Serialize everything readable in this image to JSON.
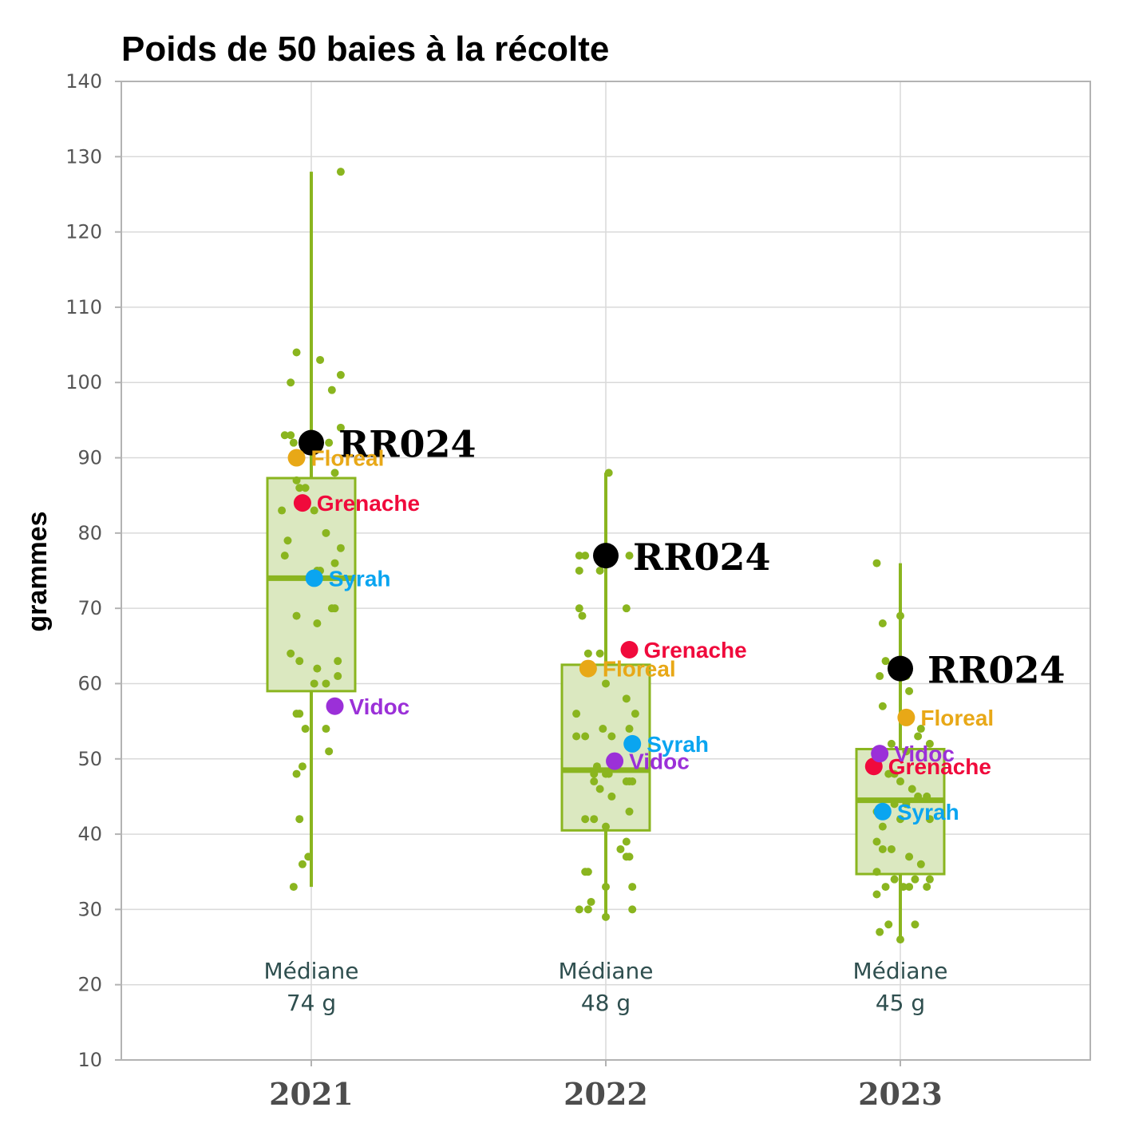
{
  "chart_data": {
    "type": "boxplot",
    "title": "Poids de 50 baies à la récolte",
    "xlabel": "",
    "ylabel": "grammes",
    "ylim": [
      10,
      140
    ],
    "yticks": [
      10,
      20,
      30,
      40,
      50,
      60,
      70,
      80,
      90,
      100,
      110,
      120,
      130,
      140
    ],
    "grid": true,
    "categories": [
      "2021",
      "2022",
      "2023"
    ],
    "colors": {
      "box": "#8ab51f",
      "box_fill": "#dbe8c0",
      "grid": "#d9d9d9",
      "frame": "#b3b3b3",
      "RR024": "#000000",
      "Floreal": "#e8a817",
      "Grenache": "#f00a3c",
      "Syrah": "#0aa5f0",
      "Vidoc": "#9b30d8"
    },
    "boxes": [
      {
        "year": "2021",
        "min": 33,
        "q1": 59,
        "median": 74,
        "q3": 87.3,
        "max": 128,
        "median_label": [
          "Médiane",
          "74 g"
        ]
      },
      {
        "year": "2022",
        "min": 29,
        "q1": 40.5,
        "median": 48.5,
        "q3": 62.5,
        "max": 88,
        "median_label": [
          "Médiane",
          "48 g"
        ]
      },
      {
        "year": "2023",
        "min": 26,
        "q1": 34.7,
        "median": 44.5,
        "q3": 51.3,
        "max": 76,
        "median_label": [
          "Médiane",
          "45 g"
        ]
      }
    ],
    "jitter_points": [
      [
        [
          0.1,
          128
        ],
        [
          -0.05,
          104
        ],
        [
          0.03,
          103
        ],
        [
          0.1,
          101
        ],
        [
          -0.07,
          100
        ],
        [
          0.07,
          99
        ],
        [
          0.1,
          94
        ],
        [
          -0.07,
          93
        ],
        [
          -0.09,
          93
        ],
        [
          0.06,
          92
        ],
        [
          -0.06,
          92
        ],
        [
          0.08,
          88
        ],
        [
          -0.05,
          87
        ],
        [
          -0.04,
          86
        ],
        [
          -0.02,
          86
        ],
        [
          -0.1,
          83
        ],
        [
          0.01,
          83
        ],
        [
          0.05,
          80
        ],
        [
          -0.08,
          79
        ],
        [
          0.1,
          78
        ],
        [
          -0.09,
          77
        ],
        [
          0.08,
          76
        ],
        [
          0.02,
          75
        ],
        [
          0.03,
          75
        ],
        [
          0.07,
          70
        ],
        [
          0.08,
          70
        ],
        [
          -0.05,
          69
        ],
        [
          0.02,
          68
        ],
        [
          -0.07,
          64
        ],
        [
          -0.04,
          63
        ],
        [
          0.09,
          63
        ],
        [
          0.02,
          62
        ],
        [
          0.09,
          61
        ],
        [
          0.01,
          60
        ],
        [
          0.05,
          60
        ],
        [
          -0.04,
          56
        ],
        [
          -0.05,
          56
        ],
        [
          -0.02,
          54
        ],
        [
          0.05,
          54
        ],
        [
          0.06,
          51
        ],
        [
          -0.03,
          49
        ],
        [
          -0.05,
          48
        ],
        [
          -0.04,
          42
        ],
        [
          -0.01,
          37
        ],
        [
          -0.03,
          36
        ],
        [
          -0.06,
          33
        ]
      ],
      [
        [
          0.01,
          88
        ],
        [
          -0.07,
          77
        ],
        [
          -0.09,
          77
        ],
        [
          0.08,
          77
        ],
        [
          -0.02,
          75
        ],
        [
          -0.09,
          75
        ],
        [
          0.07,
          70
        ],
        [
          -0.09,
          70
        ],
        [
          -0.08,
          69
        ],
        [
          -0.06,
          64
        ],
        [
          -0.02,
          64
        ],
        [
          0.0,
          60
        ],
        [
          0.07,
          58
        ],
        [
          0.1,
          56
        ],
        [
          -0.1,
          56
        ],
        [
          0.08,
          54
        ],
        [
          -0.01,
          54
        ],
        [
          -0.07,
          53
        ],
        [
          -0.1,
          53
        ],
        [
          0.02,
          53
        ],
        [
          0.04,
          50
        ],
        [
          -0.03,
          49
        ],
        [
          -0.04,
          48
        ],
        [
          0.0,
          48
        ],
        [
          0.01,
          48
        ],
        [
          -0.04,
          47
        ],
        [
          0.07,
          47
        ],
        [
          0.08,
          47
        ],
        [
          0.09,
          47
        ],
        [
          -0.02,
          46
        ],
        [
          0.02,
          45
        ],
        [
          -0.04,
          42
        ],
        [
          -0.07,
          42
        ],
        [
          0.0,
          41
        ],
        [
          0.08,
          43
        ],
        [
          0.07,
          39
        ],
        [
          0.05,
          38
        ],
        [
          0.08,
          37
        ],
        [
          0.07,
          37
        ],
        [
          -0.06,
          35
        ],
        [
          -0.07,
          35
        ],
        [
          0.0,
          33
        ],
        [
          0.09,
          33
        ],
        [
          -0.05,
          31
        ],
        [
          -0.06,
          30
        ],
        [
          -0.09,
          30
        ],
        [
          0.09,
          30
        ],
        [
          0.0,
          29
        ]
      ],
      [
        [
          -0.08,
          76
        ],
        [
          -0.06,
          68
        ],
        [
          0.0,
          69
        ],
        [
          -0.05,
          63
        ],
        [
          -0.07,
          61
        ],
        [
          0.02,
          61
        ],
        [
          0.03,
          59
        ],
        [
          -0.06,
          57
        ],
        [
          0.07,
          54
        ],
        [
          0.06,
          53
        ],
        [
          -0.03,
          52
        ],
        [
          0.1,
          52
        ],
        [
          0.02,
          51
        ],
        [
          -0.04,
          48
        ],
        [
          -0.02,
          48
        ],
        [
          0.0,
          47
        ],
        [
          0.04,
          46
        ],
        [
          0.06,
          45
        ],
        [
          0.09,
          45
        ],
        [
          -0.02,
          44
        ],
        [
          0.02,
          44
        ],
        [
          -0.08,
          43
        ],
        [
          0.0,
          42
        ],
        [
          0.1,
          42
        ],
        [
          -0.06,
          41
        ],
        [
          -0.08,
          39
        ],
        [
          -0.06,
          38
        ],
        [
          -0.03,
          38
        ],
        [
          0.03,
          37
        ],
        [
          0.07,
          36
        ],
        [
          -0.08,
          35
        ],
        [
          0.1,
          34
        ],
        [
          -0.02,
          34
        ],
        [
          0.05,
          34
        ],
        [
          -0.05,
          33
        ],
        [
          0.03,
          33
        ],
        [
          0.01,
          33
        ],
        [
          0.09,
          33
        ],
        [
          -0.08,
          32
        ],
        [
          -0.04,
          28
        ],
        [
          0.05,
          28
        ],
        [
          -0.07,
          27
        ],
        [
          0.0,
          26
        ]
      ]
    ],
    "highlighted": [
      {
        "name": "RR024",
        "values": [
          {
            "year": "2021",
            "dx": 0.0,
            "y": 92
          },
          {
            "year": "2022",
            "dx": 0.0,
            "y": 77
          },
          {
            "year": "2023",
            "dx": 0.0,
            "y": 62
          }
        ]
      },
      {
        "name": "Floreal",
        "values": [
          {
            "year": "2021",
            "dx": -0.05,
            "y": 90
          },
          {
            "year": "2022",
            "dx": -0.06,
            "y": 62
          },
          {
            "year": "2023",
            "dx": 0.02,
            "y": 55.5
          }
        ]
      },
      {
        "name": "Grenache",
        "values": [
          {
            "year": "2021",
            "dx": -0.03,
            "y": 84
          },
          {
            "year": "2022",
            "dx": 0.08,
            "y": 64.5
          },
          {
            "year": "2023",
            "dx": -0.09,
            "y": 49
          }
        ]
      },
      {
        "name": "Syrah",
        "values": [
          {
            "year": "2021",
            "dx": 0.01,
            "y": 74
          },
          {
            "year": "2022",
            "dx": 0.09,
            "y": 52
          },
          {
            "year": "2023",
            "dx": -0.06,
            "y": 43
          }
        ]
      },
      {
        "name": "Vidoc",
        "values": [
          {
            "year": "2021",
            "dx": 0.08,
            "y": 57
          },
          {
            "year": "2022",
            "dx": 0.03,
            "y": 49.7
          },
          {
            "year": "2023",
            "dx": -0.07,
            "y": 50.7
          }
        ]
      }
    ]
  }
}
